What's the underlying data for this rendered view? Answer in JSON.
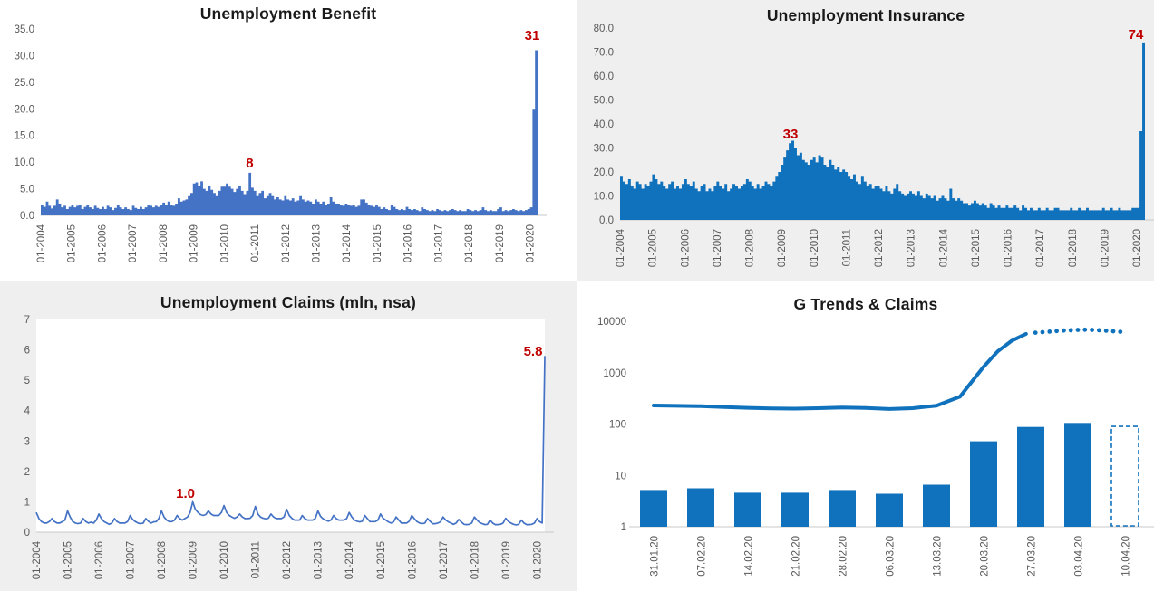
{
  "colors": {
    "excel_blue": "#4472C4",
    "strong_blue": "#1072BC",
    "annotation_red": "#C00000",
    "axis_text": "#595959",
    "quad_gray": "#efefef",
    "baseline_gray": "#c9c9c9"
  },
  "chart_data": [
    {
      "type": "bar",
      "title": "Unemployment Benefit",
      "bar_color": "#4472C4",
      "annotation_color": "#C00000",
      "ylim": [
        0,
        35
      ],
      "ytick_labels": [
        "0.0",
        "5.0",
        "10.0",
        "15.0",
        "20.0",
        "25.0",
        "30.0",
        "35.0"
      ],
      "xtick_labels": [
        "01-2004",
        "01-2005",
        "01-2006",
        "01-2007",
        "01-2008",
        "01-2009",
        "01-2010",
        "01-2011",
        "01-2012",
        "01-2013",
        "01-2014",
        "01-2015",
        "01-2016",
        "01-2017",
        "01-2018",
        "01-2019",
        "01-2020"
      ],
      "xtick_month_step": 12,
      "grid": false,
      "values": [
        2.0,
        1.6,
        2.6,
        1.8,
        1.3,
        1.8,
        3.0,
        2.2,
        1.5,
        1.8,
        1.2,
        1.6,
        2.0,
        1.5,
        1.8,
        2.0,
        1.2,
        1.6,
        2.0,
        1.5,
        1.2,
        1.8,
        1.4,
        1.2,
        1.6,
        1.2,
        1.8,
        1.5,
        1.0,
        1.4,
        2.0,
        1.5,
        1.2,
        1.5,
        1.2,
        1.0,
        1.8,
        1.4,
        1.2,
        1.6,
        1.2,
        1.5,
        2.0,
        1.8,
        1.5,
        1.8,
        1.6,
        2.0,
        2.4,
        2.0,
        2.6,
        2.0,
        1.8,
        2.2,
        3.2,
        2.6,
        2.8,
        3.0,
        3.6,
        4.2,
        6.0,
        6.2,
        5.6,
        6.4,
        5.0,
        4.6,
        5.6,
        4.8,
        4.2,
        3.6,
        4.6,
        5.4,
        5.4,
        6.0,
        5.4,
        5.0,
        4.4,
        5.0,
        5.6,
        4.6,
        4.0,
        4.6,
        8.0,
        5.2,
        4.6,
        3.6,
        4.2,
        4.6,
        3.2,
        3.6,
        4.2,
        3.6,
        3.0,
        3.4,
        3.0,
        2.8,
        3.6,
        3.0,
        2.8,
        3.2,
        2.6,
        2.8,
        3.6,
        3.0,
        2.6,
        2.8,
        2.6,
        2.2,
        3.0,
        2.6,
        2.2,
        2.6,
        2.0,
        2.2,
        3.4,
        2.6,
        2.2,
        2.2,
        2.0,
        1.8,
        2.2,
        2.0,
        1.8,
        2.0,
        1.6,
        1.8,
        3.0,
        3.0,
        2.4,
        2.0,
        1.8,
        1.6,
        2.0,
        1.6,
        1.2,
        1.5,
        1.2,
        1.0,
        2.0,
        1.6,
        1.2,
        1.0,
        1.2,
        1.0,
        1.6,
        1.2,
        1.0,
        1.2,
        1.0,
        0.8,
        1.5,
        1.2,
        1.0,
        0.8,
        1.0,
        0.8,
        1.2,
        1.0,
        0.8,
        1.0,
        0.8,
        1.0,
        1.2,
        1.0,
        0.8,
        1.0,
        0.8,
        0.8,
        1.2,
        1.0,
        0.8,
        1.0,
        0.8,
        1.0,
        1.5,
        1.0,
        0.8,
        1.0,
        0.8,
        0.8,
        1.2,
        1.5,
        0.8,
        1.0,
        0.8,
        1.0,
        1.2,
        1.0,
        0.8,
        1.0,
        0.8,
        1.0,
        1.2,
        1.5,
        20.0,
        31.0
      ],
      "annotations": [
        {
          "text": "8",
          "x_index": 82,
          "y_value": 9.85,
          "dx": 0
        },
        {
          "text": "31",
          "x_index": 195,
          "y_value": 33.8,
          "dx": -6
        }
      ]
    },
    {
      "type": "bar",
      "title": "Unemployment Insurance",
      "bar_color": "#1072BC",
      "annotation_color": "#C00000",
      "ylim": [
        0,
        80
      ],
      "ytick_labels": [
        "0.0",
        "10.0",
        "20.0",
        "30.0",
        "40.0",
        "50.0",
        "60.0",
        "70.0",
        "80.0"
      ],
      "xtick_labels": [
        "01-2004",
        "01-2005",
        "01-2006",
        "01-2007",
        "01-2008",
        "01-2009",
        "01-2010",
        "01-2011",
        "01-2012",
        "01-2013",
        "01-2014",
        "01-2015",
        "01-2016",
        "01-2017",
        "01-2018",
        "01-2019",
        "01-2020"
      ],
      "xtick_month_step": 12,
      "grid": false,
      "values": [
        18,
        16,
        15,
        17,
        14,
        13,
        16,
        15,
        13,
        15,
        14,
        16,
        19,
        17,
        15,
        16,
        14,
        13,
        15,
        16,
        13,
        14,
        13,
        15,
        17,
        15,
        14,
        16,
        13,
        12,
        14,
        15,
        12,
        13,
        12,
        14,
        16,
        14,
        13,
        15,
        12,
        13,
        15,
        14,
        13,
        14,
        15,
        17,
        16,
        14,
        13,
        15,
        13,
        14,
        16,
        15,
        14,
        16,
        18,
        20,
        23,
        26,
        29,
        32,
        33,
        30,
        27,
        28,
        25,
        24,
        23,
        25,
        26,
        24,
        27,
        26,
        23,
        22,
        25,
        23,
        21,
        22,
        20,
        21,
        20,
        18,
        17,
        19,
        16,
        15,
        18,
        16,
        14,
        15,
        13,
        14,
        14,
        13,
        12,
        14,
        12,
        11,
        13,
        15,
        12,
        11,
        10,
        11,
        12,
        11,
        10,
        12,
        10,
        9,
        11,
        10,
        9,
        10,
        8,
        9,
        10,
        9,
        8,
        13,
        9,
        8,
        9,
        8,
        7,
        7,
        6,
        7,
        8,
        7,
        6,
        7,
        6,
        5,
        7,
        6,
        5,
        6,
        5,
        5,
        6,
        5,
        5,
        6,
        5,
        4,
        6,
        5,
        4,
        5,
        4,
        4,
        5,
        4,
        4,
        5,
        4,
        4,
        5,
        5,
        4,
        4,
        4,
        4,
        5,
        4,
        4,
        5,
        4,
        4,
        5,
        4,
        4,
        4,
        4,
        4,
        5,
        4,
        4,
        5,
        4,
        4,
        5,
        4,
        4,
        4,
        4,
        5,
        5,
        5,
        37,
        74
      ],
      "annotations": [
        {
          "text": "33",
          "x_index": 64,
          "y_value": 35.8,
          "dx": -2
        },
        {
          "text": "74",
          "x_index": 195,
          "y_value": 77.4,
          "dx": -10
        }
      ]
    },
    {
      "type": "line",
      "title": "Unemployment Claims (mln, nsa)",
      "line_color": "#4472C4",
      "annotation_color": "#C00000",
      "ylim": [
        0,
        7
      ],
      "ytick_labels": [
        "0",
        "1",
        "2",
        "3",
        "4",
        "5",
        "6",
        "7"
      ],
      "xtick_labels": [
        "01-2004",
        "01-2005",
        "01-2006",
        "01-2007",
        "01-2008",
        "01-2009",
        "01-2010",
        "01-2011",
        "01-2012",
        "01-2013",
        "01-2014",
        "01-2015",
        "01-2016",
        "01-2017",
        "01-2018",
        "01-2019",
        "01-2020"
      ],
      "xtick_month_step": 12,
      "grid": false,
      "values": [
        0.65,
        0.45,
        0.35,
        0.3,
        0.3,
        0.35,
        0.45,
        0.35,
        0.3,
        0.3,
        0.35,
        0.4,
        0.7,
        0.5,
        0.35,
        0.3,
        0.28,
        0.3,
        0.45,
        0.35,
        0.3,
        0.33,
        0.3,
        0.4,
        0.6,
        0.45,
        0.35,
        0.3,
        0.26,
        0.3,
        0.45,
        0.35,
        0.3,
        0.3,
        0.3,
        0.35,
        0.55,
        0.42,
        0.35,
        0.3,
        0.28,
        0.3,
        0.45,
        0.36,
        0.3,
        0.34,
        0.35,
        0.45,
        0.7,
        0.5,
        0.4,
        0.35,
        0.35,
        0.4,
        0.55,
        0.45,
        0.4,
        0.45,
        0.5,
        0.65,
        1.0,
        0.75,
        0.65,
        0.58,
        0.55,
        0.58,
        0.7,
        0.6,
        0.55,
        0.55,
        0.55,
        0.65,
        0.88,
        0.65,
        0.55,
        0.5,
        0.46,
        0.5,
        0.6,
        0.5,
        0.45,
        0.45,
        0.46,
        0.55,
        0.85,
        0.6,
        0.5,
        0.46,
        0.44,
        0.46,
        0.6,
        0.5,
        0.45,
        0.45,
        0.45,
        0.5,
        0.75,
        0.55,
        0.46,
        0.4,
        0.4,
        0.4,
        0.55,
        0.45,
        0.4,
        0.4,
        0.4,
        0.45,
        0.7,
        0.52,
        0.44,
        0.4,
        0.36,
        0.4,
        0.55,
        0.45,
        0.4,
        0.4,
        0.4,
        0.45,
        0.65,
        0.5,
        0.4,
        0.36,
        0.34,
        0.36,
        0.55,
        0.44,
        0.35,
        0.35,
        0.35,
        0.4,
        0.6,
        0.46,
        0.4,
        0.34,
        0.3,
        0.34,
        0.5,
        0.4,
        0.3,
        0.3,
        0.3,
        0.36,
        0.55,
        0.44,
        0.35,
        0.3,
        0.28,
        0.3,
        0.45,
        0.36,
        0.28,
        0.28,
        0.3,
        0.34,
        0.5,
        0.4,
        0.34,
        0.3,
        0.26,
        0.3,
        0.42,
        0.34,
        0.26,
        0.25,
        0.26,
        0.3,
        0.5,
        0.4,
        0.32,
        0.28,
        0.25,
        0.26,
        0.4,
        0.3,
        0.25,
        0.25,
        0.26,
        0.3,
        0.46,
        0.36,
        0.3,
        0.26,
        0.24,
        0.26,
        0.4,
        0.3,
        0.25,
        0.25,
        0.26,
        0.3,
        0.45,
        0.35,
        0.3,
        5.8
      ],
      "annotations": [
        {
          "text": "1.0",
          "x_index": 60,
          "y_value": 1.28,
          "dx": -8
        },
        {
          "text": "5.8",
          "x_index": 195,
          "y_value": 5.96,
          "dx": -13
        }
      ]
    },
    {
      "type": "combo-log",
      "title": "G Trends & Claims",
      "yscale": "log",
      "ylim": [
        1,
        10000
      ],
      "ytick_labels": [
        "1",
        "10",
        "100",
        "1000",
        "10000"
      ],
      "grid": false,
      "categories": [
        "31.01.20",
        "07.02.20",
        "14.02.20",
        "21.02.20",
        "28.02.20",
        "06.03.20",
        "13.03.20",
        "20.03.20",
        "27.03.20",
        "03.04.20",
        "10.04.20"
      ],
      "bar_series": {
        "name": "Claims",
        "color": "#1072BC",
        "values": [
          5.2,
          5.6,
          4.6,
          4.6,
          5.2,
          4.4,
          6.6,
          46,
          88,
          105
        ]
      },
      "forecast_bar": {
        "category": "10.04.20",
        "value": 90,
        "style": "dashed-outline",
        "color": "#1072BC"
      },
      "line_series": {
        "name": "G Trends",
        "color": "#1072BC",
        "solid": [
          [
            0,
            230
          ],
          [
            0.5,
            226
          ],
          [
            1,
            222
          ],
          [
            1.5,
            214
          ],
          [
            2,
            207
          ],
          [
            2.5,
            202
          ],
          [
            3,
            199
          ],
          [
            3.5,
            203
          ],
          [
            4,
            210
          ],
          [
            4.5,
            206
          ],
          [
            5,
            196
          ],
          [
            5.5,
            203
          ],
          [
            6,
            228
          ],
          [
            6.5,
            340
          ],
          [
            7,
            1300
          ],
          [
            7.3,
            2600
          ],
          [
            7.6,
            4200
          ],
          [
            7.9,
            5700
          ]
        ],
        "dotted": [
          [
            8.1,
            6000
          ],
          [
            8.25,
            6150
          ],
          [
            8.4,
            6300
          ],
          [
            8.55,
            6450
          ],
          [
            8.7,
            6600
          ],
          [
            8.85,
            6700
          ],
          [
            9.0,
            6800
          ],
          [
            9.15,
            6850
          ],
          [
            9.3,
            6800
          ],
          [
            9.45,
            6700
          ],
          [
            9.6,
            6550
          ],
          [
            9.75,
            6400
          ],
          [
            9.9,
            6250
          ]
        ]
      },
      "annotations": []
    }
  ]
}
